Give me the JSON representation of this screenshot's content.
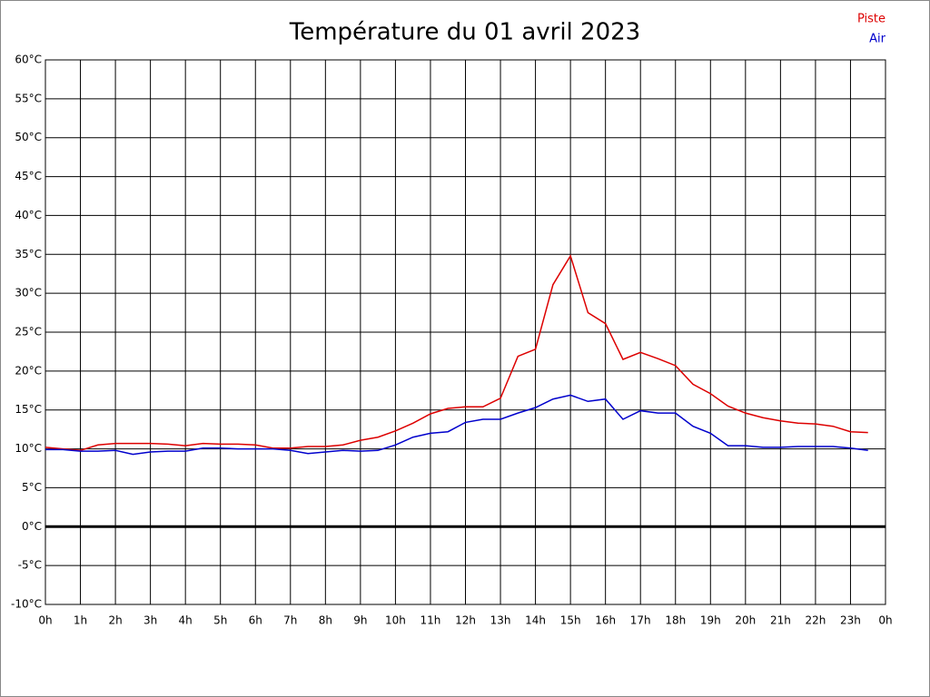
{
  "chart_data": {
    "type": "line",
    "title": "Température du 01 avril 2023",
    "x": [
      0,
      0.5,
      1,
      1.5,
      2,
      2.5,
      3,
      3.5,
      4,
      4.5,
      5,
      5.5,
      6,
      6.5,
      7,
      7.5,
      8,
      8.5,
      9,
      9.5,
      10,
      10.5,
      11,
      11.5,
      12,
      12.5,
      13,
      13.5,
      14,
      14.5,
      15,
      15.5,
      16,
      16.5,
      17,
      17.5,
      18,
      18.5,
      19,
      19.5,
      20,
      20.5,
      21,
      21.5,
      22,
      22.5,
      23,
      23.5
    ],
    "series": [
      {
        "name": "Piste",
        "color": "#dd0000",
        "values": [
          10.2,
          10.0,
          9.8,
          10.5,
          10.7,
          10.7,
          10.7,
          10.6,
          10.4,
          10.7,
          10.6,
          10.6,
          10.5,
          10.1,
          10.1,
          10.3,
          10.3,
          10.5,
          11.1,
          11.5,
          12.3,
          13.3,
          14.5,
          15.2,
          15.4,
          15.4,
          16.5,
          21.9,
          22.8,
          31.1,
          34.8,
          27.5,
          26.1,
          21.5,
          22.4,
          21.6,
          20.7,
          18.3,
          17.1,
          15.5,
          14.6,
          14.0,
          13.6,
          13.3,
          13.2,
          12.9,
          12.2,
          12.1
        ]
      },
      {
        "name": "Air",
        "color": "#0000cc",
        "values": [
          9.9,
          9.9,
          9.7,
          9.7,
          9.8,
          9.3,
          9.6,
          9.7,
          9.7,
          10.1,
          10.1,
          10.0,
          10.0,
          10.0,
          9.8,
          9.4,
          9.6,
          9.8,
          9.7,
          9.8,
          10.5,
          11.5,
          12.0,
          12.2,
          13.4,
          13.8,
          13.8,
          14.6,
          15.3,
          16.4,
          16.9,
          16.1,
          16.4,
          13.8,
          14.9,
          14.6,
          14.6,
          12.9,
          12.0,
          10.4,
          10.4,
          10.2,
          10.2,
          10.3,
          10.3,
          10.3,
          10.1,
          9.8
        ]
      }
    ],
    "xlim": [
      0,
      24
    ],
    "xticks": [
      {
        "value": 0,
        "label": "0h"
      },
      {
        "value": 1,
        "label": "1h"
      },
      {
        "value": 2,
        "label": "2h"
      },
      {
        "value": 3,
        "label": "3h"
      },
      {
        "value": 4,
        "label": "4h"
      },
      {
        "value": 5,
        "label": "5h"
      },
      {
        "value": 6,
        "label": "6h"
      },
      {
        "value": 7,
        "label": "7h"
      },
      {
        "value": 8,
        "label": "8h"
      },
      {
        "value": 9,
        "label": "9h"
      },
      {
        "value": 10,
        "label": "10h"
      },
      {
        "value": 11,
        "label": "11h"
      },
      {
        "value": 12,
        "label": "12h"
      },
      {
        "value": 13,
        "label": "13h"
      },
      {
        "value": 14,
        "label": "14h"
      },
      {
        "value": 15,
        "label": "15h"
      },
      {
        "value": 16,
        "label": "16h"
      },
      {
        "value": 17,
        "label": "17h"
      },
      {
        "value": 18,
        "label": "18h"
      },
      {
        "value": 19,
        "label": "19h"
      },
      {
        "value": 20,
        "label": "20h"
      },
      {
        "value": 21,
        "label": "21h"
      },
      {
        "value": 22,
        "label": "22h"
      },
      {
        "value": 23,
        "label": "23h"
      },
      {
        "value": 24,
        "label": "0h"
      }
    ],
    "ylim": [
      -10,
      60
    ],
    "yticks": [
      {
        "value": -10,
        "label": "-10°C"
      },
      {
        "value": -5,
        "label": "-5°C"
      },
      {
        "value": 0,
        "label": "0°C"
      },
      {
        "value": 5,
        "label": "5°C"
      },
      {
        "value": 10,
        "label": "10°C"
      },
      {
        "value": 15,
        "label": "15°C"
      },
      {
        "value": 20,
        "label": "20°C"
      },
      {
        "value": 25,
        "label": "25°C"
      },
      {
        "value": 30,
        "label": "30°C"
      },
      {
        "value": 35,
        "label": "35°C"
      },
      {
        "value": 40,
        "label": "40°C"
      },
      {
        "value": 45,
        "label": "45°C"
      },
      {
        "value": 50,
        "label": "50°C"
      },
      {
        "value": 55,
        "label": "55°C"
      },
      {
        "value": 60,
        "label": "60°C"
      }
    ],
    "grid": true,
    "zero_line": true,
    "legend": "top-right"
  }
}
